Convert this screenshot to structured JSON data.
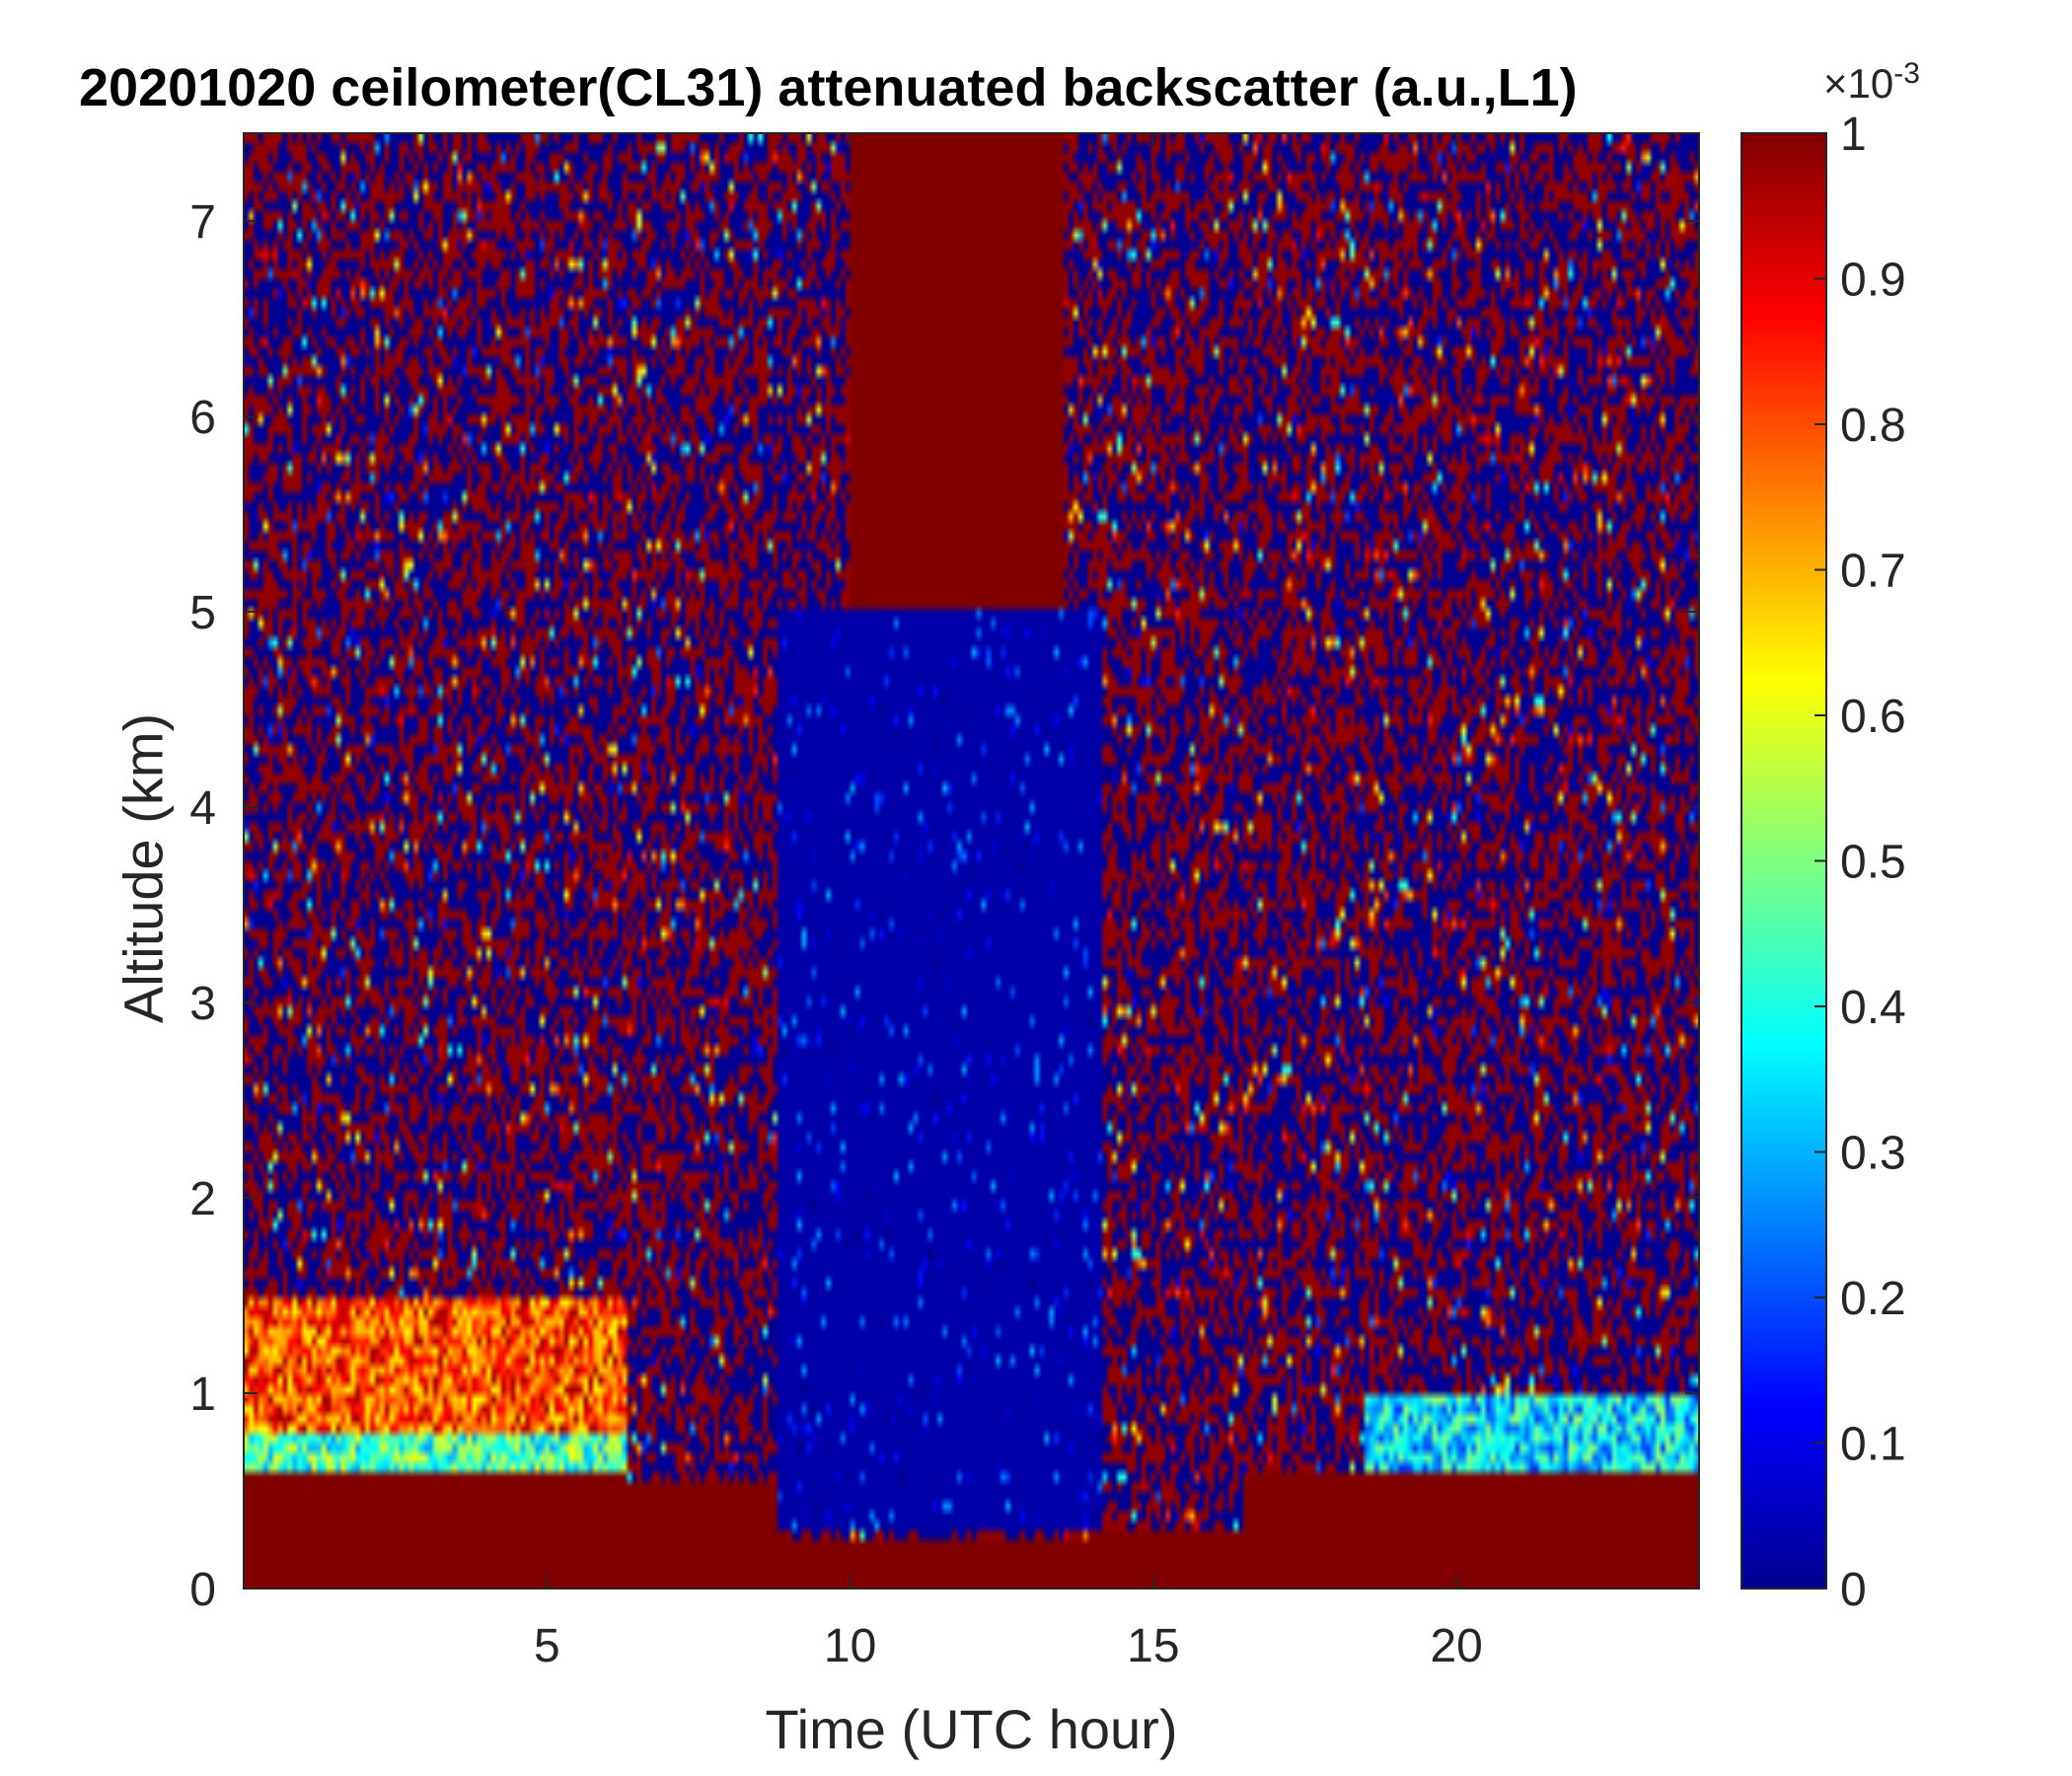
{
  "chart_data": {
    "type": "heatmap",
    "title": "20201020 ceilometer(CL31) attenuated backscatter (a.u.,L1)",
    "xlabel": "Time (UTC hour)",
    "ylabel": "Altitude (km)",
    "xlim": [
      0,
      24
    ],
    "ylim": [
      0,
      7.45
    ],
    "xticks": [
      "5",
      "10",
      "15",
      "20"
    ],
    "yticks": [
      "0",
      "1",
      "2",
      "3",
      "4",
      "5",
      "6",
      "7"
    ],
    "colorbar": {
      "colormap": "jet",
      "range": [
        0,
        0.001
      ],
      "exponent_label": "×10",
      "exponent_power": "-3",
      "ticks": [
        "0",
        "0.1",
        "0.2",
        "0.3",
        "0.4",
        "0.5",
        "0.6",
        "0.7",
        "0.8",
        "0.9",
        "1"
      ]
    },
    "regions": [
      {
        "time": [
          0,
          6.3
        ],
        "altitude_km": [
          0,
          0.6
        ],
        "level": 1.0
      },
      {
        "time": [
          0,
          6.3
        ],
        "altitude_km": [
          0.6,
          0.8
        ],
        "level": 0.45
      },
      {
        "time": [
          0,
          6.3
        ],
        "altitude_km": [
          0.8,
          1.5
        ],
        "level": 0.8
      },
      {
        "time": [
          6.3,
          9.0
        ],
        "altitude_km": [
          0,
          0.55
        ],
        "level": 1.0
      },
      {
        "time": [
          9.0,
          14.0
        ],
        "altitude_km": [
          0,
          0.25
        ],
        "level": 1.0
      },
      {
        "time": [
          14.0,
          16.5
        ],
        "altitude_km": [
          0,
          0.3
        ],
        "level": 1.0
      },
      {
        "time": [
          8.8,
          14.2
        ],
        "altitude_km": [
          0.3,
          5.0
        ],
        "level": 0.05
      },
      {
        "time": [
          10.0,
          13.5
        ],
        "altitude_km": [
          5.0,
          7.45
        ],
        "level": 1.0
      },
      {
        "time": [
          16.5,
          24
        ],
        "altitude_km": [
          0,
          0.6
        ],
        "level": 1.0
      },
      {
        "time": [
          18.5,
          24
        ],
        "altitude_km": [
          0.6,
          1.0
        ],
        "level": 0.35
      }
    ],
    "grid": false
  },
  "colors": {
    "axis": "#262626",
    "jet_low": "#00008f",
    "jet_high": "#800000"
  }
}
